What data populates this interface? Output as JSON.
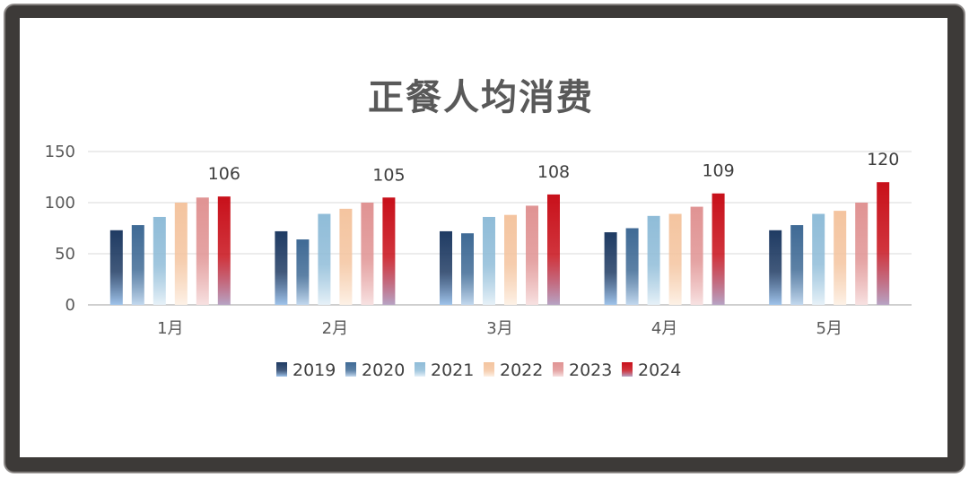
{
  "chart_data": {
    "type": "bar",
    "title": "正餐人均消费",
    "categories": [
      "1月",
      "2月",
      "3月",
      "4月",
      "5月"
    ],
    "series": [
      {
        "name": "2019",
        "values": [
          73,
          72,
          72,
          71,
          73
        ],
        "color_top": "#1f3b63",
        "color_bottom": "#9fc3ea"
      },
      {
        "name": "2020",
        "values": [
          78,
          64,
          70,
          75,
          78
        ],
        "color_top": "#3f6a95",
        "color_bottom": "#c2d8ee"
      },
      {
        "name": "2021",
        "values": [
          86,
          89,
          86,
          87,
          89
        ],
        "color_top": "#8fbcd8",
        "color_bottom": "#e6f1f8"
      },
      {
        "name": "2022",
        "values": [
          100,
          94,
          88,
          89,
          92
        ],
        "color_top": "#f4c49f",
        "color_bottom": "#fdf1e6"
      },
      {
        "name": "2023",
        "values": [
          105,
          100,
          97,
          96,
          100
        ],
        "color_top": "#e09393",
        "color_bottom": "#f7e1e1"
      },
      {
        "name": "2024",
        "values": [
          106,
          105,
          108,
          109,
          120
        ],
        "color_top": "#c8101a",
        "color_bottom": "#b7a3c4"
      }
    ],
    "data_labels": {
      "series": "2024",
      "values": [
        106,
        105,
        108,
        109,
        120
      ]
    },
    "yticks": [
      0,
      50,
      100,
      150
    ],
    "ylim": [
      0,
      150
    ],
    "xlabel": "",
    "ylabel": "",
    "grid": true,
    "legend": "bottom"
  }
}
